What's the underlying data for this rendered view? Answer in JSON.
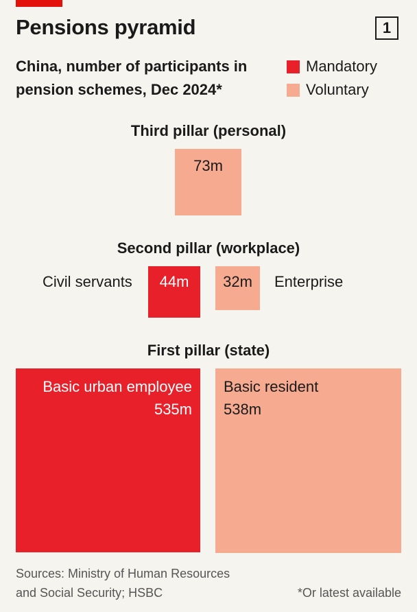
{
  "title": "Pensions pyramid",
  "badge": "1",
  "subtitle_line1": "China, number of participants in",
  "subtitle_line2": "pension schemes, Dec 2024*",
  "legend": [
    {
      "label": "Mandatory",
      "color": "#e8202a"
    },
    {
      "label": "Voluntary",
      "color": "#f6ab91"
    }
  ],
  "chart_data": {
    "type": "proportional area squares",
    "unit": "m participants",
    "pillars": [
      {
        "label": "Third pillar (personal)",
        "schemes": [
          {
            "name": "",
            "value": 73,
            "value_label": "73m",
            "kind": "Voluntary"
          }
        ]
      },
      {
        "label": "Second pillar (workplace)",
        "schemes": [
          {
            "name": "Civil servants",
            "value": 44,
            "value_label": "44m",
            "kind": "Mandatory"
          },
          {
            "name": "Enterprise",
            "value": 32,
            "value_label": "32m",
            "kind": "Voluntary"
          }
        ]
      },
      {
        "label": "First pillar (state)",
        "schemes": [
          {
            "name": "Basic urban employee",
            "value": 535,
            "value_label": "535m",
            "kind": "Mandatory"
          },
          {
            "name": "Basic resident",
            "value": 538,
            "value_label": "538m",
            "kind": "Voluntary"
          }
        ]
      }
    ]
  },
  "source_line1": "Sources: Ministry of Human Resources",
  "source_line2": "and Social Security; HSBC",
  "footnote": "*Or latest available"
}
